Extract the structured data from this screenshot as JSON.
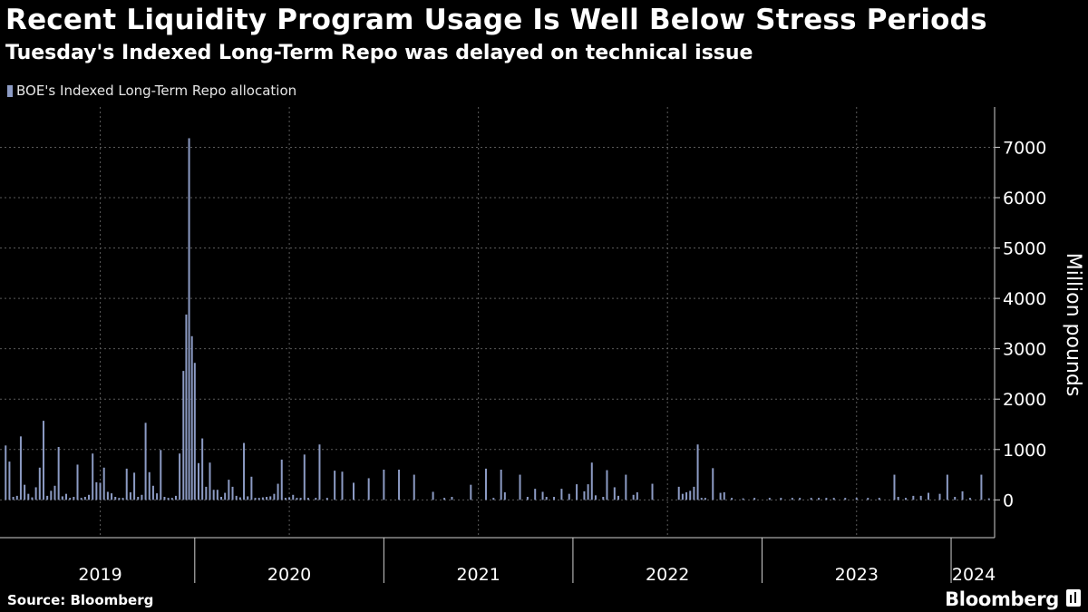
{
  "header": {
    "title": "Recent Liquidity Program Usage Is Well Below Stress Periods",
    "subtitle": "Tuesday's Indexed Long-Term Repo was delayed on technical issue"
  },
  "footer": {
    "source": "Source: Bloomberg",
    "brand": "Bloomberg"
  },
  "colors": {
    "bar": "#8c9bc4",
    "background": "#000000",
    "grid": "#5a5a5a"
  },
  "chart_data": {
    "type": "bar",
    "legend": [
      "BOE's Indexed Long-Term Repo allocation"
    ],
    "legend_position": "top-left",
    "ylabel": "Million pounds",
    "y_axis_side": "right",
    "ylim": [
      -750,
      7800
    ],
    "yticks": [
      0,
      1000,
      2000,
      3000,
      4000,
      5000,
      6000,
      7000
    ],
    "grid": true,
    "xlim": [
      2018.97,
      2024.23
    ],
    "x_year_labels": [
      {
        "label": "2019",
        "at": 2019.5
      },
      {
        "label": "2020",
        "at": 2020.5
      },
      {
        "label": "2021",
        "at": 2021.5
      },
      {
        "label": "2022",
        "at": 2022.5
      },
      {
        "label": "2023",
        "at": 2023.5
      },
      {
        "label": "2024",
        "at": 2024.12
      }
    ],
    "series": [
      {
        "name": "BOE's Indexed Long-Term Repo allocation",
        "points": [
          [
            2019.0,
            1080
          ],
          [
            2019.02,
            760
          ],
          [
            2019.04,
            60
          ],
          [
            2019.06,
            80
          ],
          [
            2019.08,
            1260
          ],
          [
            2019.1,
            300
          ],
          [
            2019.12,
            120
          ],
          [
            2019.14,
            50
          ],
          [
            2019.16,
            250
          ],
          [
            2019.18,
            640
          ],
          [
            2019.2,
            1570
          ],
          [
            2019.22,
            80
          ],
          [
            2019.24,
            180
          ],
          [
            2019.26,
            280
          ],
          [
            2019.28,
            1050
          ],
          [
            2019.3,
            70
          ],
          [
            2019.32,
            120
          ],
          [
            2019.34,
            40
          ],
          [
            2019.36,
            60
          ],
          [
            2019.38,
            700
          ],
          [
            2019.4,
            40
          ],
          [
            2019.42,
            60
          ],
          [
            2019.44,
            100
          ],
          [
            2019.46,
            920
          ],
          [
            2019.48,
            350
          ],
          [
            2019.5,
            340
          ],
          [
            2019.52,
            640
          ],
          [
            2019.54,
            160
          ],
          [
            2019.56,
            130
          ],
          [
            2019.58,
            60
          ],
          [
            2019.6,
            40
          ],
          [
            2019.62,
            40
          ],
          [
            2019.64,
            620
          ],
          [
            2019.66,
            150
          ],
          [
            2019.68,
            540
          ],
          [
            2019.7,
            60
          ],
          [
            2019.72,
            100
          ],
          [
            2019.74,
            1530
          ],
          [
            2019.76,
            550
          ],
          [
            2019.78,
            280
          ],
          [
            2019.8,
            130
          ],
          [
            2019.82,
            990
          ],
          [
            2019.84,
            60
          ],
          [
            2019.86,
            40
          ],
          [
            2019.88,
            40
          ],
          [
            2019.9,
            80
          ],
          [
            2019.92,
            920
          ],
          [
            2019.94,
            2560
          ],
          [
            2019.955,
            3680
          ],
          [
            2019.97,
            7180
          ],
          [
            2019.985,
            3250
          ],
          [
            2020.0,
            2720
          ],
          [
            2020.02,
            730
          ],
          [
            2020.04,
            1220
          ],
          [
            2020.06,
            260
          ],
          [
            2020.08,
            740
          ],
          [
            2020.1,
            200
          ],
          [
            2020.12,
            200
          ],
          [
            2020.14,
            60
          ],
          [
            2020.16,
            140
          ],
          [
            2020.18,
            400
          ],
          [
            2020.2,
            260
          ],
          [
            2020.22,
            80
          ],
          [
            2020.24,
            50
          ],
          [
            2020.26,
            1130
          ],
          [
            2020.28,
            70
          ],
          [
            2020.3,
            460
          ],
          [
            2020.32,
            40
          ],
          [
            2020.34,
            40
          ],
          [
            2020.36,
            50
          ],
          [
            2020.38,
            60
          ],
          [
            2020.4,
            70
          ],
          [
            2020.42,
            120
          ],
          [
            2020.44,
            320
          ],
          [
            2020.46,
            800
          ],
          [
            2020.48,
            40
          ],
          [
            2020.5,
            50
          ],
          [
            2020.52,
            100
          ],
          [
            2020.54,
            40
          ],
          [
            2020.56,
            40
          ],
          [
            2020.58,
            900
          ],
          [
            2020.6,
            40
          ],
          [
            2020.64,
            40
          ],
          [
            2020.66,
            1100
          ],
          [
            2020.7,
            40
          ],
          [
            2020.74,
            580
          ],
          [
            2020.78,
            560
          ],
          [
            2020.84,
            340
          ],
          [
            2020.92,
            430
          ],
          [
            2021.0,
            600
          ],
          [
            2021.08,
            600
          ],
          [
            2021.16,
            500
          ],
          [
            2021.26,
            160
          ],
          [
            2021.32,
            40
          ],
          [
            2021.36,
            60
          ],
          [
            2021.46,
            300
          ],
          [
            2021.54,
            620
          ],
          [
            2021.58,
            40
          ],
          [
            2021.62,
            600
          ],
          [
            2021.64,
            150
          ],
          [
            2021.72,
            500
          ],
          [
            2021.76,
            60
          ],
          [
            2021.8,
            220
          ],
          [
            2021.84,
            160
          ],
          [
            2021.86,
            60
          ],
          [
            2021.9,
            60
          ],
          [
            2021.94,
            220
          ],
          [
            2021.98,
            120
          ],
          [
            2022.02,
            310
          ],
          [
            2022.06,
            170
          ],
          [
            2022.08,
            310
          ],
          [
            2022.1,
            740
          ],
          [
            2022.12,
            90
          ],
          [
            2022.16,
            60
          ],
          [
            2022.18,
            590
          ],
          [
            2022.22,
            250
          ],
          [
            2022.24,
            80
          ],
          [
            2022.28,
            500
          ],
          [
            2022.32,
            100
          ],
          [
            2022.34,
            150
          ],
          [
            2022.42,
            320
          ],
          [
            2022.56,
            260
          ],
          [
            2022.58,
            120
          ],
          [
            2022.6,
            150
          ],
          [
            2022.62,
            180
          ],
          [
            2022.64,
            260
          ],
          [
            2022.66,
            1100
          ],
          [
            2022.68,
            40
          ],
          [
            2022.7,
            40
          ],
          [
            2022.74,
            630
          ],
          [
            2022.78,
            140
          ],
          [
            2022.8,
            150
          ],
          [
            2022.84,
            40
          ],
          [
            2022.9,
            30
          ],
          [
            2022.96,
            40
          ],
          [
            2023.04,
            40
          ],
          [
            2023.1,
            40
          ],
          [
            2023.16,
            40
          ],
          [
            2023.2,
            40
          ],
          [
            2023.26,
            40
          ],
          [
            2023.3,
            40
          ],
          [
            2023.34,
            40
          ],
          [
            2023.38,
            40
          ],
          [
            2023.44,
            40
          ],
          [
            2023.5,
            40
          ],
          [
            2023.56,
            40
          ],
          [
            2023.62,
            40
          ],
          [
            2023.7,
            500
          ],
          [
            2023.72,
            60
          ],
          [
            2023.76,
            40
          ],
          [
            2023.8,
            80
          ],
          [
            2023.84,
            80
          ],
          [
            2023.88,
            140
          ],
          [
            2023.94,
            120
          ],
          [
            2023.98,
            500
          ],
          [
            2024.02,
            60
          ],
          [
            2024.06,
            170
          ],
          [
            2024.1,
            40
          ],
          [
            2024.16,
            500
          ],
          [
            2024.2,
            30
          ]
        ]
      }
    ]
  }
}
